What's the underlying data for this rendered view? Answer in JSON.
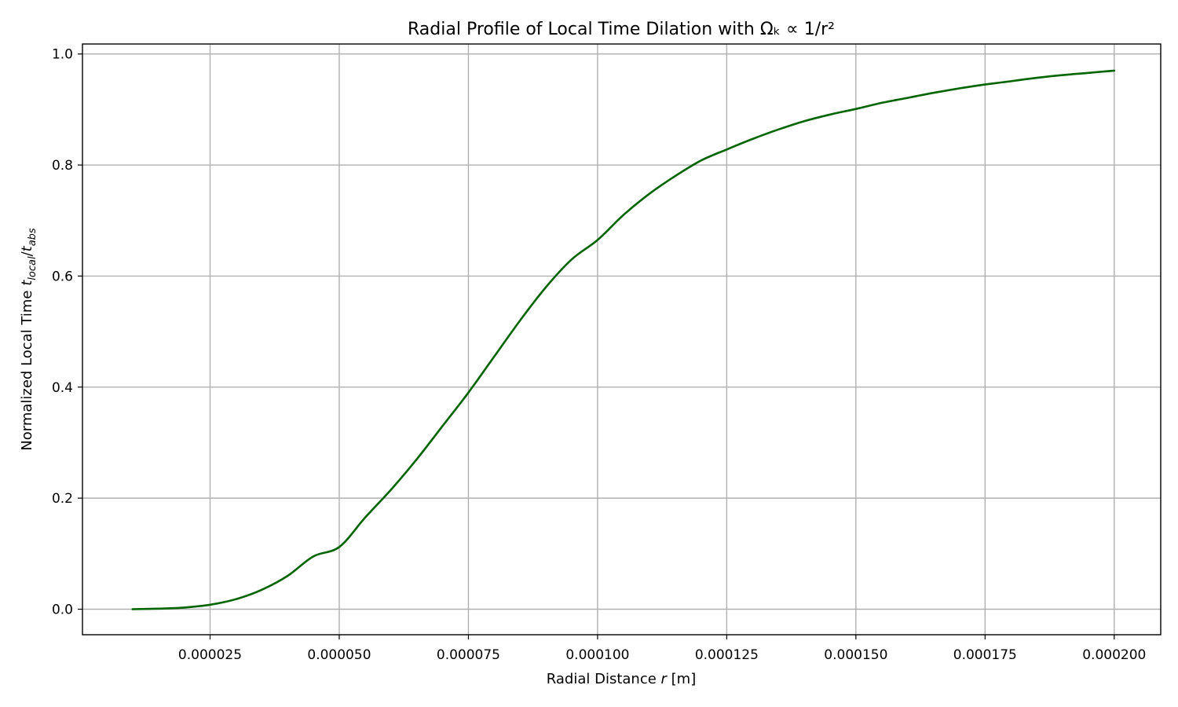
{
  "chart_data": {
    "type": "line",
    "title": "Radial Profile of Local Time Dilation with Ωₖ ∝ 1/r²",
    "xlabel": {
      "prefix": "Radial Distance ",
      "var": "r",
      "suffix": " [m]"
    },
    "ylabel": {
      "prefix": "Normalized Local Time ",
      "num_var": "t",
      "num_sub": "local",
      "sep": "/",
      "den_var": "t",
      "den_sub": "abs"
    },
    "xlim": [
      3e-07,
      0.000209
    ],
    "ylim": [
      -0.046,
      1.018
    ],
    "x_ticks": [
      2.5e-05,
      5e-05,
      7.5e-05,
      0.0001,
      0.000125,
      0.00015,
      0.000175,
      0.0002
    ],
    "x_tick_labels": [
      "0.000025",
      "0.000050",
      "0.000075",
      "0.000100",
      "0.000125",
      "0.000150",
      "0.000175",
      "0.000200"
    ],
    "y_ticks": [
      0.0,
      0.2,
      0.4,
      0.6,
      0.8,
      1.0
    ],
    "y_tick_labels": [
      "0.0",
      "0.2",
      "0.4",
      "0.6",
      "0.8",
      "1.0"
    ],
    "grid": true,
    "series": [
      {
        "color": "#006400",
        "x": [
          1e-05,
          1.5e-05,
          2e-05,
          2.5e-05,
          3e-05,
          3.5e-05,
          4e-05,
          4.5e-05,
          5e-05,
          5.5e-05,
          6e-05,
          6.5e-05,
          7e-05,
          7.5e-05,
          8e-05,
          8.5e-05,
          9e-05,
          9.5e-05,
          0.0001,
          0.000105,
          0.00011,
          0.000115,
          0.00012,
          0.000125,
          0.00013,
          0.000135,
          0.00014,
          0.000145,
          0.00015,
          0.000155,
          0.00016,
          0.000165,
          0.00017,
          0.000175,
          0.00018,
          0.000185,
          0.00019,
          0.000195,
          0.0002
        ],
        "y": [
          0.0,
          0.001,
          0.003,
          0.008,
          0.018,
          0.035,
          0.06,
          0.095,
          0.112,
          0.165,
          0.215,
          0.27,
          0.33,
          0.39,
          0.455,
          0.52,
          0.58,
          0.63,
          0.665,
          0.71,
          0.748,
          0.78,
          0.808,
          0.828,
          0.847,
          0.864,
          0.879,
          0.891,
          0.901,
          0.912,
          0.921,
          0.93,
          0.938,
          0.945,
          0.951,
          0.957,
          0.962,
          0.966,
          0.97
        ]
      }
    ]
  }
}
